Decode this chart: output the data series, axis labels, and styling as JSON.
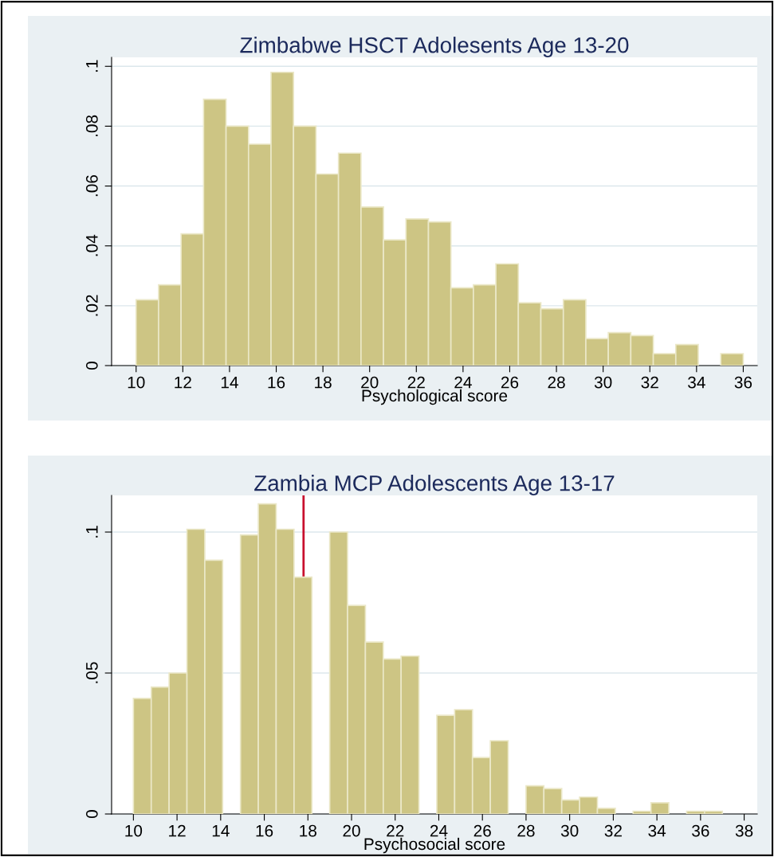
{
  "chart_data": [
    {
      "type": "histogram",
      "title": "Zimbabwe HSCT Adolesents Age 13-20",
      "xlabel": "Psychological score",
      "color": "#cdc584",
      "bins": [
        10,
        10.963,
        11.926,
        12.889,
        13.852,
        14.815,
        15.778,
        16.741,
        17.704,
        18.667,
        19.63,
        20.593,
        21.556,
        22.519,
        23.481,
        24.444,
        25.407,
        26.37,
        27.333,
        28.296,
        29.259,
        30.222,
        31.185,
        32.148,
        33.111,
        34.074,
        35.037,
        36
      ],
      "values": [
        0.022,
        0.027,
        0.044,
        0.089,
        0.08,
        0.074,
        0.098,
        0.08,
        0.064,
        0.071,
        0.053,
        0.042,
        0.049,
        0.048,
        0.026,
        0.027,
        0.034,
        0.021,
        0.019,
        0.022,
        0.009,
        0.011,
        0.01,
        0.004,
        0.007,
        0,
        0.004
      ],
      "xlim": [
        8.95,
        36.6
      ],
      "xticks": [
        10,
        12,
        14,
        16,
        18,
        20,
        22,
        24,
        26,
        28,
        30,
        32,
        34,
        36
      ],
      "ylim": [
        0,
        0.103
      ],
      "yticks": [
        0,
        {
          "value": 0.02,
          "label": ".02"
        },
        {
          "value": 0.04,
          "label": ".04"
        },
        {
          "value": 0.06,
          "label": ".06"
        },
        {
          "value": 0.08,
          "label": ".08"
        },
        {
          "value": 0.1,
          "label": ".1"
        }
      ],
      "grid": "y"
    },
    {
      "type": "histogram",
      "title": "Zambia MCP Adolescents Age 13-17",
      "xlabel": "Psychosocial score",
      "color": "#cdc584",
      "bins": [
        10,
        10.818,
        11.636,
        12.455,
        13.273,
        14.091,
        14.909,
        15.727,
        16.545,
        17.364,
        18.182,
        19,
        19.818,
        20.636,
        21.455,
        22.273,
        23.091,
        23.909,
        24.727,
        25.545,
        26.364,
        27.182,
        28,
        28.818,
        29.636,
        30.455,
        31.273,
        32.091,
        32.909,
        33.727,
        34.545,
        35.364,
        36.182,
        37
      ],
      "values": [
        0.041,
        0.045,
        0.05,
        0.101,
        0.09,
        0,
        0.099,
        0.11,
        0.101,
        0.084,
        0,
        0.1,
        0.074,
        0.061,
        0.055,
        0.056,
        0,
        0.035,
        0.037,
        0.02,
        0.026,
        0,
        0.01,
        0.009,
        0.005,
        0.006,
        0.002,
        0,
        0.001,
        0.004,
        0,
        0.001,
        0.001
      ],
      "xlim": [
        9,
        38.6
      ],
      "xticks": [
        10,
        12,
        14,
        16,
        18,
        20,
        22,
        24,
        26,
        28,
        30,
        32,
        34,
        36,
        38
      ],
      "ylim": [
        0,
        0.113
      ],
      "yticks": [
        0,
        {
          "value": 0.05,
          "label": ".05"
        },
        {
          "value": 0.1,
          "label": ".1"
        }
      ],
      "grid": "y",
      "ref_lines": [
        {
          "axis": "x",
          "value": 17.8,
          "color": "#c8102e"
        }
      ]
    }
  ]
}
